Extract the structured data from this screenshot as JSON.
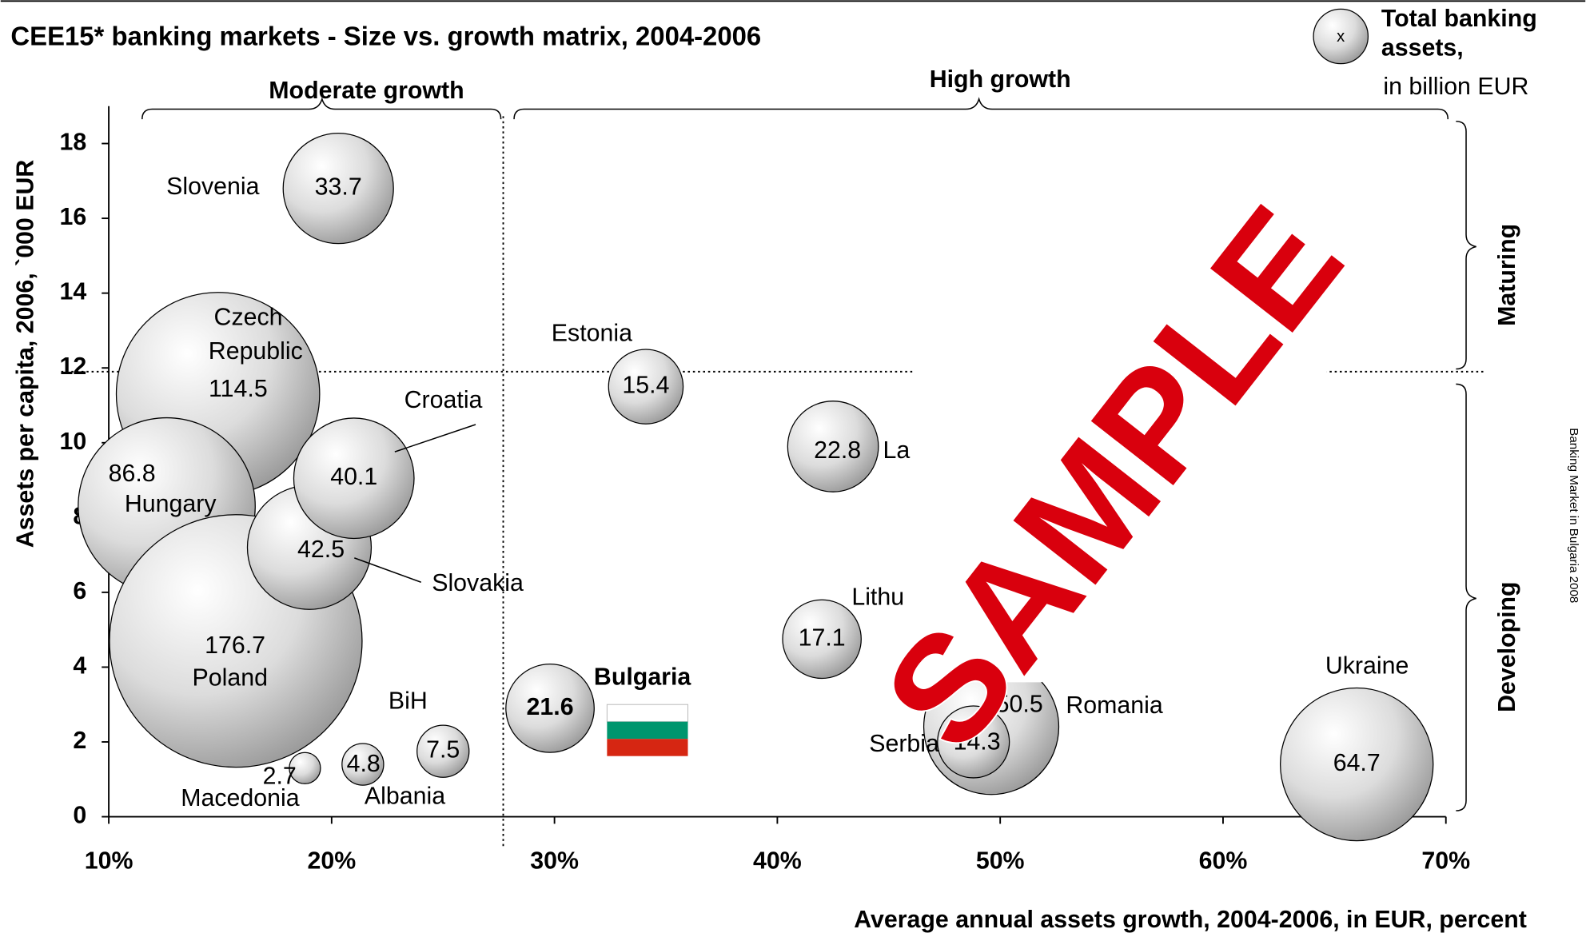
{
  "chart_data": {
    "type": "bubble",
    "title": "CEE15* banking markets - Size vs. growth matrix, 2004-2006",
    "legend": {
      "symbol": "x",
      "title": "Total banking assets,",
      "unit": "in billion EUR"
    },
    "x_label": "Average annual assets growth, 2004-2006, in EUR, percent",
    "y_label": "Assets per capita, 2006, `000 EUR",
    "regions": {
      "moderate": "Moderate growth",
      "high": "High growth",
      "maturing": "Maturing",
      "developing": "Developing"
    },
    "dividers": {
      "x": 27.7,
      "y": 11.9
    },
    "side_note": "Banking Market in Bulgaria 2008",
    "watermark": "SAMPLE",
    "xlim": [
      10,
      70
    ],
    "ylim": [
      0,
      19
    ],
    "xticks": [
      {
        "value": 10,
        "label": "10%"
      },
      {
        "value": 20,
        "label": "20%"
      },
      {
        "value": 30,
        "label": "30%"
      },
      {
        "value": 40,
        "label": "40%"
      },
      {
        "value": 50,
        "label": "50%"
      },
      {
        "value": 60,
        "label": "60%"
      },
      {
        "value": 70,
        "label": "70%"
      }
    ],
    "yticks": [
      0,
      2,
      4,
      6,
      8,
      10,
      12,
      14,
      16,
      18
    ],
    "highlight": "Bulgaria",
    "points": {
      "names": [
        "Czech Republic",
        "Hungary",
        "Poland",
        "Slovakia",
        "Croatia",
        "Slovenia",
        "Macedonia",
        "Albania",
        "BiH",
        "Bulgaria",
        "Estonia",
        "La",
        "Lithu",
        "Romania",
        "Serbia",
        "Ukraine"
      ],
      "x": [
        14.9,
        12.6,
        15.7,
        19.0,
        21.0,
        20.3,
        18.8,
        21.4,
        25.0,
        29.8,
        34.1,
        42.5,
        42.0,
        49.6,
        48.8,
        66.0
      ],
      "y": [
        11.3,
        8.3,
        4.7,
        7.2,
        9.05,
        16.8,
        1.3,
        1.4,
        1.75,
        2.9,
        11.5,
        9.9,
        4.75,
        2.4,
        2.0,
        1.4
      ],
      "sizes": [
        114.5,
        86.8,
        176.7,
        42.5,
        40.1,
        33.7,
        2.7,
        4.8,
        7.5,
        21.6,
        15.4,
        22.8,
        17.1,
        50.5,
        14.3,
        64.7
      ]
    }
  }
}
